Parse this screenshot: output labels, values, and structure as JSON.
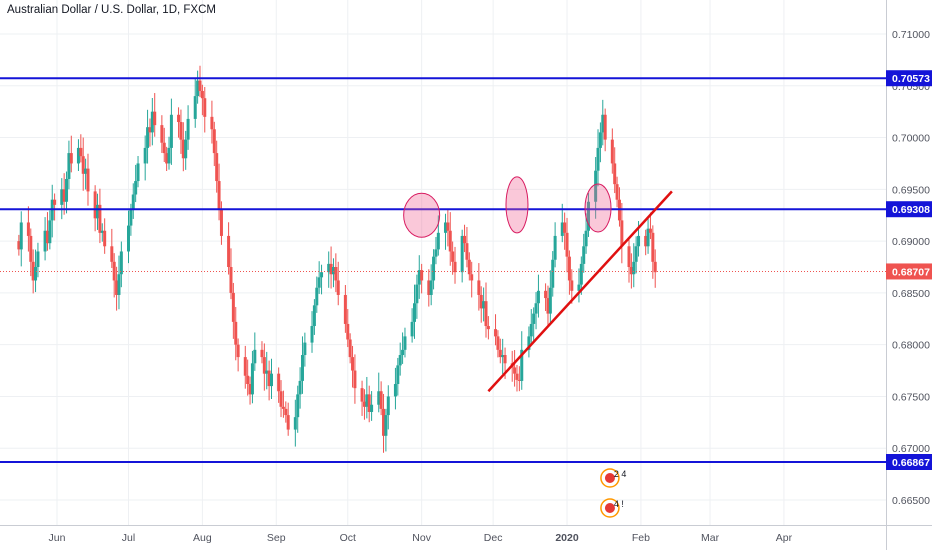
{
  "chart_data": {
    "type": "candlestick",
    "title": "Australian Dollar / U.S. Dollar, 1D, FXCM",
    "ylim": [
      0.6625,
      0.7125
    ],
    "y_ticks": [
      "0.71000",
      "0.70500",
      "0.70000",
      "0.69500",
      "0.69000",
      "0.68500",
      "0.68000",
      "0.67500",
      "0.67000",
      "0.66500"
    ],
    "x_ticks": [
      "Jun",
      "Jul",
      "Aug",
      "Sep",
      "Oct",
      "Nov",
      "Dec",
      "2020",
      "Feb",
      "Mar",
      "Apr"
    ],
    "grid": true,
    "colors": {
      "up": "#26a69a",
      "down": "#ef5350",
      "level": "#1414d8",
      "trend": "#e01010",
      "marker": "#f06292",
      "current": "#ef5350"
    },
    "horizontal_levels": [
      {
        "value": 0.70573,
        "label": "0.70573"
      },
      {
        "value": 0.69308,
        "label": "0.69308"
      },
      {
        "value": 0.66867,
        "label": "0.66867"
      }
    ],
    "current_price": {
      "value": 0.68707,
      "label": "0.68707"
    },
    "trendline": {
      "from": {
        "date": "2019-11-29",
        "value": 0.6755
      },
      "to": {
        "date": "2020-02-14",
        "value": 0.6948
      }
    },
    "highlight_markers": [
      {
        "date": "2019-11-01",
        "value": 0.6925
      },
      {
        "date": "2019-12-11",
        "value": 0.6935
      },
      {
        "date": "2020-01-14",
        "value": 0.6932
      }
    ],
    "event_icons": [
      {
        "date": "2020-01-19",
        "label": "2 4"
      },
      {
        "date": "2020-01-19",
        "label": "4 !"
      }
    ],
    "series": [
      {
        "dates_range": [
          "2019-05-16",
          "2020-01-17"
        ],
        "close": [
          0.6892,
          0.6918,
          0.6905,
          0.688,
          0.6862,
          0.6875,
          0.689,
          0.691,
          0.6898,
          0.692,
          0.694,
          0.6935,
          0.695,
          0.6938,
          0.696,
          0.6985,
          0.6975,
          0.699,
          0.6982,
          0.6965,
          0.697,
          0.6948,
          0.6922,
          0.6935,
          0.6908,
          0.691,
          0.6895,
          0.688,
          0.6862,
          0.6848,
          0.6868,
          0.689,
          0.6915,
          0.693,
          0.6945,
          0.6958,
          0.6975,
          0.699,
          0.701,
          0.7005,
          0.7025,
          0.7012,
          0.6995,
          0.6985,
          0.6975,
          0.699,
          0.7022,
          0.7015,
          0.6998,
          0.698,
          0.6998,
          0.7018,
          0.704,
          0.7055,
          0.7045,
          0.7038,
          0.702,
          0.7008,
          0.6985,
          0.6958,
          0.693,
          0.6905,
          0.6875,
          0.685,
          0.6822,
          0.68,
          0.6788,
          0.677,
          0.6762,
          0.6752,
          0.6782,
          0.6795,
          0.6788,
          0.6772,
          0.6775,
          0.676,
          0.6772,
          0.6755,
          0.674,
          0.6738,
          0.6732,
          0.6718,
          0.673,
          0.6752,
          0.6765,
          0.679,
          0.6802,
          0.6818,
          0.6838,
          0.6855,
          0.6865,
          0.687,
          0.6878,
          0.6868,
          0.6875,
          0.6862,
          0.6848,
          0.682,
          0.6805,
          0.6788,
          0.6775,
          0.6758,
          0.6745,
          0.674,
          0.6752,
          0.6735,
          0.6742,
          0.6755,
          0.6738,
          0.6712,
          0.6732,
          0.675,
          0.6762,
          0.678,
          0.679,
          0.6795,
          0.6808,
          0.6822,
          0.684,
          0.6858,
          0.6872,
          0.6862,
          0.6848,
          0.6862,
          0.6885,
          0.6892,
          0.6908,
          0.6918,
          0.691,
          0.689,
          0.688,
          0.687,
          0.6905,
          0.6898,
          0.6882,
          0.6868,
          0.6862,
          0.6848,
          0.6835,
          0.6842,
          0.6818,
          0.6815,
          0.6808,
          0.6795,
          0.6788,
          0.679,
          0.6782,
          0.6778,
          0.6772,
          0.6766,
          0.6765,
          0.6795,
          0.6808,
          0.682,
          0.683,
          0.684,
          0.6852,
          0.6845,
          0.683,
          0.6855,
          0.6882,
          0.6905,
          0.6918,
          0.6908,
          0.6885,
          0.6862,
          0.6852,
          0.6858,
          0.6878,
          0.6895,
          0.691,
          0.6938,
          0.6968,
          0.699,
          0.7005,
          0.7022,
          0.6998,
          0.6975,
          0.6955,
          0.694,
          0.692,
          0.6895,
          0.6875,
          0.6868,
          0.688,
          0.6895,
          0.6905,
          0.6895,
          0.6912,
          0.6908,
          0.688,
          0.687
        ]
      }
    ]
  }
}
